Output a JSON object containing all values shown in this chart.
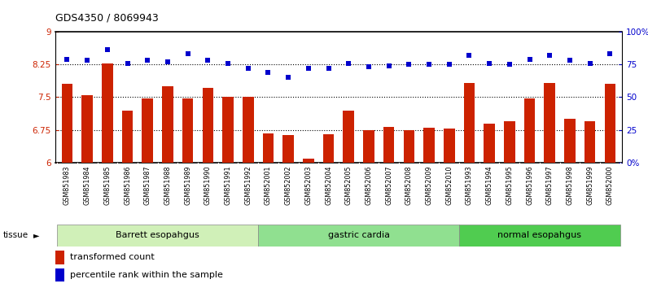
{
  "title": "GDS4350 / 8069943",
  "samples": [
    "GSM851983",
    "GSM851984",
    "GSM851985",
    "GSM851986",
    "GSM851987",
    "GSM851988",
    "GSM851989",
    "GSM851990",
    "GSM851991",
    "GSM851992",
    "GSM852001",
    "GSM852002",
    "GSM852003",
    "GSM852004",
    "GSM852005",
    "GSM852006",
    "GSM852007",
    "GSM852008",
    "GSM852009",
    "GSM852010",
    "GSM851993",
    "GSM851994",
    "GSM851995",
    "GSM851996",
    "GSM851997",
    "GSM851998",
    "GSM851999",
    "GSM852000"
  ],
  "bar_values": [
    7.8,
    7.55,
    8.27,
    7.2,
    7.47,
    7.75,
    7.47,
    7.72,
    7.5,
    7.5,
    6.68,
    6.63,
    6.1,
    6.65,
    7.2,
    6.75,
    6.82,
    6.75,
    6.8,
    6.78,
    7.83,
    6.9,
    6.95,
    7.47,
    7.83,
    7.0,
    6.95,
    7.8
  ],
  "dot_values": [
    79,
    78,
    86,
    76,
    78,
    77,
    83,
    78,
    76,
    72,
    69,
    65,
    72,
    72,
    76,
    73,
    74,
    75,
    75,
    75,
    82,
    76,
    75,
    79,
    82,
    78,
    76,
    83
  ],
  "groups": [
    {
      "label": "Barrett esopahgus",
      "start": 0,
      "end": 10,
      "color": "#d0f0b8"
    },
    {
      "label": "gastric cardia",
      "start": 10,
      "end": 20,
      "color": "#90e090"
    },
    {
      "label": "normal esopahgus",
      "start": 20,
      "end": 28,
      "color": "#50cc50"
    }
  ],
  "bar_color": "#cc2200",
  "dot_color": "#0000cc",
  "bar_bottom": 6.0,
  "ylim_left": [
    6.0,
    9.0
  ],
  "ylim_right": [
    0,
    100
  ],
  "yticks_left": [
    6.0,
    6.75,
    7.5,
    8.25,
    9.0
  ],
  "ytick_labels_left": [
    "6",
    "6.75",
    "7.5",
    "8.25",
    "9"
  ],
  "yticks_right": [
    0,
    25,
    50,
    75,
    100
  ],
  "ytick_labels_right": [
    "0%",
    "25",
    "50",
    "75",
    "100%"
  ],
  "hlines": [
    6.75,
    7.5,
    8.25
  ],
  "tissue_label": "tissue",
  "arrow": "►",
  "legend_bar_label": "transformed count",
  "legend_dot_label": "percentile rank within the sample",
  "xlabel_bg_color": "#d0d0d0",
  "plot_bg_color": "#ffffff"
}
